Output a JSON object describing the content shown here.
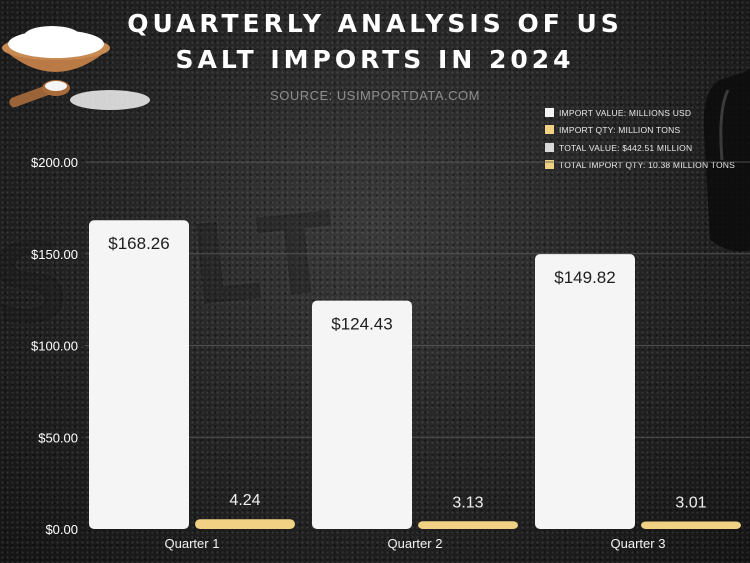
{
  "title": "QUARTERLY ANALYSIS OF US SALT IMPORTS IN 2024",
  "source": "SOURCE: USIMPORTDATA.COM",
  "colors": {
    "value_bar": "#f5f5f5",
    "qty_bar": "#f1d184",
    "text": "#ffffff",
    "grid": "#5a5a5a"
  },
  "legend": [
    {
      "label": "IMPORT VALUE: MILLIONS USD",
      "color": "#f5f5f5"
    },
    {
      "label": "IMPORT QTY: MILLION TONS",
      "color": "#f1d184"
    },
    {
      "label": "TOTAL VALUE: $442.51 MILLION",
      "color": "#d9d9d9"
    },
    {
      "label": "TOTAL IMPORT QTY: 10.38 MILLION TONS",
      "color": "#f1d184"
    }
  ],
  "chart_data": {
    "type": "bar",
    "categories": [
      "Quarter 1",
      "Quarter 2",
      "Quarter 3"
    ],
    "series": [
      {
        "name": "IMPORT VALUE: MILLIONS USD",
        "values": [
          168.26,
          124.43,
          149.82
        ],
        "labels": [
          "$168.26",
          "$124.43",
          "$149.82"
        ]
      },
      {
        "name": "IMPORT QTY: MILLION TONS",
        "values": [
          4.24,
          3.13,
          3.01
        ],
        "labels": [
          "4.24",
          "3.13",
          "3.01"
        ]
      }
    ],
    "yticks": [
      "$0.00",
      "$50.00",
      "$100.00",
      "$150.00",
      "$200.00"
    ],
    "ylim": [
      0,
      200
    ],
    "grid": true,
    "legend_position": "top-right"
  }
}
